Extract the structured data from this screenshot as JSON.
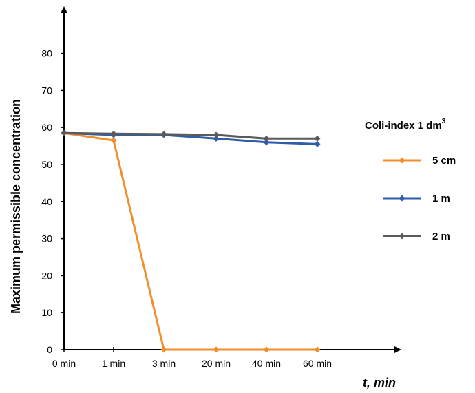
{
  "chart_data": {
    "type": "line",
    "categories": [
      "0 min",
      "1 min",
      "3 min",
      "20 min",
      "40 min",
      "60 min"
    ],
    "series": [
      {
        "name": "5 cm",
        "color": "#f28e2b",
        "values": [
          58.5,
          56.5,
          0,
          0,
          0,
          0
        ]
      },
      {
        "name": "1 m",
        "color": "#2e5eaa",
        "values": [
          58.5,
          58,
          58,
          57,
          56,
          55.5
        ]
      },
      {
        "name": "2 m",
        "color": "#5a5a5a",
        "values": [
          58.5,
          58.3,
          58.2,
          58,
          57,
          57
        ]
      }
    ],
    "yticks": [
      0,
      10,
      20,
      30,
      40,
      50,
      60,
      70,
      80
    ],
    "ylim": [
      0,
      90
    ],
    "ylabel": "Maximum permissible concentration",
    "xlabel": "t, min",
    "legend": {
      "title": "Coli-index 1 dm",
      "title_superscript": "3",
      "placement": "right"
    },
    "grid": false
  }
}
